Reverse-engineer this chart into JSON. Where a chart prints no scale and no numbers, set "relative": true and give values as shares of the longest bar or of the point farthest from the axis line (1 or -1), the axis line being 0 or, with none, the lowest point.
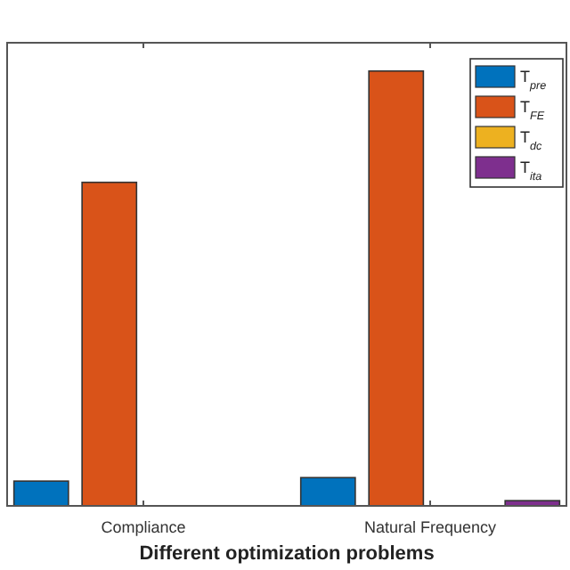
{
  "chart_data": {
    "type": "bar",
    "relative": true,
    "xlabel": "Different optimization problems",
    "categories": [
      "Compliance",
      "Natural Frequency"
    ],
    "legend": "top right",
    "series": [
      {
        "name": "T$_{pre}$",
        "color": "#0072bd",
        "values": [
          0.057,
          0.065
        ]
      },
      {
        "name": "T$_{FE}$",
        "color": "#d95319",
        "values": [
          0.744,
          1
        ]
      },
      {
        "name": "T$_{dc}$",
        "color": "#edb120",
        "values": [
          0,
          0
        ]
      },
      {
        "name": "T$_{ita}$",
        "color": "#7e2f8e",
        "values": [
          0,
          0.012
        ]
      }
    ]
  }
}
